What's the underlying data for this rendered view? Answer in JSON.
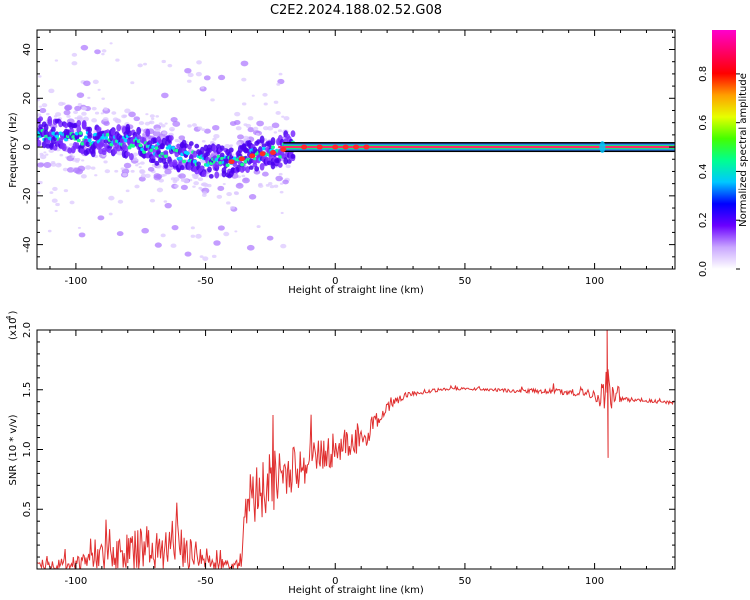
{
  "page_title": "C2E2.2024.188.02.52.G08",
  "colors": {
    "snr_line": "#e03030",
    "tone_line": "#ff2a6a",
    "colorbar_stops": [
      "#ffffff",
      "#c9a6ff",
      "#6a00ff",
      "#0000ff",
      "#00c8ff",
      "#00ff90",
      "#44ff00",
      "#e6ff00",
      "#ff9f00",
      "#ff0000",
      "#ff0066",
      "#ff00cc"
    ]
  },
  "chart_data": [
    {
      "type": "heatmap",
      "title": "C2E2.2024.188.02.52.G08",
      "xlabel": "Height of straight line (km)",
      "ylabel": "Frequency (Hz)",
      "xlim": [
        -115,
        131
      ],
      "ylim": [
        -50,
        48
      ],
      "xticks": [
        -100,
        -50,
        0,
        50,
        100
      ],
      "yticks": [
        -40,
        -20,
        0,
        20,
        40
      ],
      "colorbar": {
        "label": "Normalized spectral amplitude",
        "range": [
          0.0,
          0.98
        ],
        "ticks": [
          "0.0",
          "0.2",
          "0.4",
          "0.6",
          "0.8"
        ]
      },
      "ridge": {
        "x": [
          -115,
          -100,
          -80,
          -60,
          -50,
          -40,
          -30,
          -22,
          -18,
          0,
          10,
          15,
          131
        ],
        "freq": [
          6,
          4,
          2,
          -3,
          -6,
          -6,
          -3,
          -2,
          0,
          0,
          0,
          0,
          0
        ]
      },
      "spike": {
        "x": 103,
        "freq": 0
      }
    },
    {
      "type": "line",
      "xlabel": "Height of straight line (km)",
      "ylabel": "SNR (10 * v/v)",
      "scale_label": "(x10",
      "scale_exponent": "4",
      "ylim": [
        0.0,
        2.0
      ],
      "xlim": [
        -115,
        131
      ],
      "xticks": [
        -100,
        -50,
        0,
        50,
        100
      ],
      "yticks": [
        "0.5",
        "1.0",
        "1.5",
        "2.0"
      ],
      "series": [
        {
          "x": [
            -115,
            -100,
            -90,
            -80,
            -70,
            -60,
            -50,
            -40,
            -36,
            -35,
            -30,
            -25,
            -20,
            -15,
            -10,
            -5,
            0,
            5,
            10,
            15,
            20,
            25,
            30,
            40,
            50,
            60,
            70,
            80,
            90,
            100,
            105,
            110,
            120,
            131
          ],
          "values": [
            0.03,
            0.05,
            0.1,
            0.14,
            0.18,
            0.2,
            0.06,
            0.03,
            0.05,
            0.55,
            0.65,
            0.72,
            0.78,
            0.84,
            0.9,
            0.96,
            1.0,
            1.05,
            1.1,
            1.2,
            1.36,
            1.43,
            1.47,
            1.5,
            1.51,
            1.5,
            1.49,
            1.49,
            1.48,
            1.46,
            1.45,
            1.42,
            1.41,
            1.39
          ],
          "noise": [
            0.03,
            0.06,
            0.12,
            0.16,
            0.2,
            0.24,
            0.06,
            0.04,
            0.05,
            0.18,
            0.25,
            0.28,
            0.22,
            0.2,
            0.18,
            0.16,
            0.14,
            0.14,
            0.13,
            0.1,
            0.06,
            0.03,
            0.02,
            0.015,
            0.012,
            0.012,
            0.015,
            0.02,
            0.025,
            0.05,
            0.18,
            0.02,
            0.015,
            0.015
          ]
        }
      ]
    }
  ]
}
